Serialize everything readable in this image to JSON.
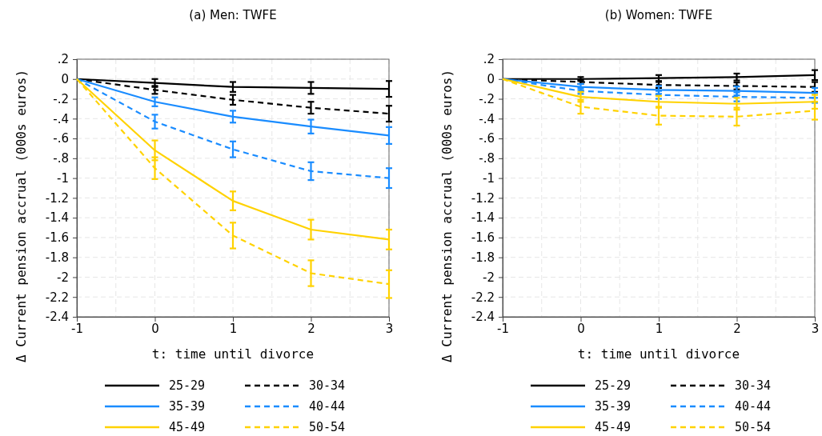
{
  "chart_data": [
    {
      "type": "line",
      "title": "(a) Men: TWFE",
      "xlabel": "t: time until divorce",
      "ylabel": "Δ Current pension accrual (000s euros)",
      "x": [
        -1,
        0,
        1,
        2,
        3
      ],
      "xlim": [
        -1,
        3
      ],
      "xticks": [
        -1,
        0,
        1,
        2,
        3
      ],
      "ylim": [
        -2.4,
        0.2
      ],
      "yticks": [
        {
          "value": 0.2,
          "label": ".2"
        },
        0,
        {
          "value": -0.2,
          "label": "-.2"
        },
        {
          "value": -0.4,
          "label": "-.4"
        },
        {
          "value": -0.6,
          "label": "-.6"
        },
        {
          "value": -0.8,
          "label": "-.8"
        },
        -1,
        -1.2,
        -1.4,
        -1.6,
        -1.8,
        -2,
        -2.2,
        -2.4
      ],
      "grid": true,
      "legend": "bottom",
      "series": [
        {
          "name": "25-29",
          "color": "#000000",
          "line_style": "solid",
          "values": [
            0,
            -0.04,
            -0.08,
            -0.09,
            -0.1
          ],
          "errors": [
            null,
            0.04,
            0.05,
            0.06,
            0.08
          ]
        },
        {
          "name": "30-34",
          "color": "#000000",
          "line_style": "dashed",
          "values": [
            0,
            -0.11,
            -0.21,
            -0.29,
            -0.35
          ],
          "errors": [
            null,
            0.04,
            0.05,
            0.06,
            0.08
          ]
        },
        {
          "name": "35-39",
          "color": "#1a8cff",
          "line_style": "solid",
          "values": [
            0,
            -0.23,
            -0.38,
            -0.48,
            -0.57
          ],
          "errors": [
            null,
            0.045,
            0.06,
            0.07,
            0.085
          ]
        },
        {
          "name": "40-44",
          "color": "#1a8cff",
          "line_style": "dashed",
          "values": [
            0,
            -0.43,
            -0.71,
            -0.93,
            -1
          ],
          "errors": [
            null,
            0.07,
            0.08,
            0.09,
            0.1
          ]
        },
        {
          "name": "45-49",
          "color": "#ffd200",
          "line_style": "solid",
          "values": [
            0,
            -0.72,
            -1.23,
            -1.52,
            -1.62
          ],
          "errors": [
            null,
            0.1,
            0.095,
            0.1,
            0.1
          ]
        },
        {
          "name": "50-54",
          "color": "#ffd200",
          "line_style": "dashed",
          "values": [
            0,
            -0.9,
            -1.58,
            -1.96,
            -2.07
          ],
          "errors": [
            null,
            0.11,
            0.13,
            0.13,
            0.14
          ]
        }
      ]
    },
    {
      "type": "line",
      "title": "(b) Women: TWFE",
      "xlabel": "t: time until divorce",
      "ylabel": "Δ Current pension accrual (000s euros)",
      "x": [
        -1,
        0,
        1,
        2,
        3
      ],
      "xlim": [
        -1,
        3
      ],
      "xticks": [
        -1,
        0,
        1,
        2,
        3
      ],
      "ylim": [
        -2.4,
        0.2
      ],
      "yticks": [
        {
          "value": 0.2,
          "label": ".2"
        },
        0,
        {
          "value": -0.2,
          "label": "-.2"
        },
        {
          "value": -0.4,
          "label": "-.4"
        },
        {
          "value": -0.6,
          "label": "-.6"
        },
        {
          "value": -0.8,
          "label": "-.8"
        },
        -1,
        -1.2,
        -1.4,
        -1.6,
        -1.8,
        -2,
        -2.2,
        -2.4
      ],
      "grid": true,
      "legend": "bottom",
      "series": [
        {
          "name": "25-29",
          "color": "#000000",
          "line_style": "solid",
          "values": [
            0,
            0,
            0.01,
            0.02,
            0.04
          ],
          "errors": [
            null,
            0.02,
            0.03,
            0.035,
            0.05
          ]
        },
        {
          "name": "30-34",
          "color": "#000000",
          "line_style": "dashed",
          "values": [
            0,
            -0.03,
            -0.06,
            -0.07,
            -0.08
          ],
          "errors": [
            null,
            0.02,
            0.03,
            0.035,
            0.05
          ]
        },
        {
          "name": "35-39",
          "color": "#1a8cff",
          "line_style": "solid",
          "values": [
            0,
            -0.08,
            -0.11,
            -0.12,
            -0.14
          ],
          "errors": [
            null,
            0.03,
            0.04,
            0.045,
            0.05
          ]
        },
        {
          "name": "40-44",
          "color": "#1a8cff",
          "line_style": "dashed",
          "values": [
            0,
            -0.12,
            -0.16,
            -0.18,
            -0.19
          ],
          "errors": [
            null,
            0.03,
            0.04,
            0.045,
            0.05
          ]
        },
        {
          "name": "45-49",
          "color": "#ffd200",
          "line_style": "solid",
          "values": [
            0,
            -0.18,
            -0.23,
            -0.25,
            -0.23
          ],
          "errors": [
            null,
            0.05,
            0.06,
            0.06,
            0.07
          ]
        },
        {
          "name": "50-54",
          "color": "#ffd200",
          "line_style": "dashed",
          "values": [
            0,
            -0.28,
            -0.37,
            -0.38,
            -0.32
          ],
          "errors": [
            null,
            0.07,
            0.09,
            0.09,
            0.09
          ]
        }
      ]
    }
  ]
}
